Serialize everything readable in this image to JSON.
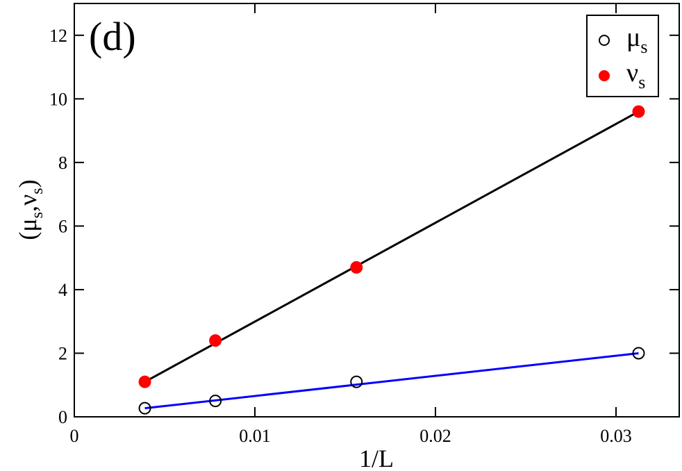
{
  "chart_data": {
    "type": "scatter",
    "panel_label": "(d)",
    "xlabel": "1/L",
    "ylabel": {
      "open": "(",
      "mu": "μ",
      "mu_sub": "s",
      "comma": ",",
      "nu": "ν",
      "nu_sub": "s",
      "close": ")"
    },
    "xlim": [
      0,
      0.0335
    ],
    "ylim": [
      0,
      13
    ],
    "x_ticks": [
      0,
      0.01,
      0.02,
      0.03
    ],
    "x_tick_labels": [
      "0",
      "0.01",
      "0.02",
      "0.03"
    ],
    "y_ticks": [
      0,
      2,
      4,
      6,
      8,
      10,
      12
    ],
    "y_tick_labels": [
      "0",
      "2",
      "4",
      "6",
      "8",
      "10",
      "12"
    ],
    "grid": false,
    "legend_position": "top-right",
    "series": [
      {
        "name": "μ",
        "name_sub": "s",
        "marker": "open-circle",
        "color": "#000000",
        "x": [
          0.00390625,
          0.0078125,
          0.015625,
          0.03125
        ],
        "y": [
          0.27,
          0.5,
          1.1,
          2.0
        ],
        "fit": {
          "x": [
            0.00390625,
            0.03125
          ],
          "y": [
            0.27,
            2.0
          ],
          "color": "#0000ff"
        }
      },
      {
        "name": "ν",
        "name_sub": "s",
        "marker": "filled-circle",
        "color": "#ff0000",
        "x": [
          0.00390625,
          0.0078125,
          0.015625,
          0.03125
        ],
        "y": [
          1.1,
          2.4,
          4.7,
          9.6
        ],
        "fit": {
          "x": [
            0.00390625,
            0.03125
          ],
          "y": [
            1.1,
            9.6
          ],
          "color": "#000000"
        }
      }
    ]
  }
}
